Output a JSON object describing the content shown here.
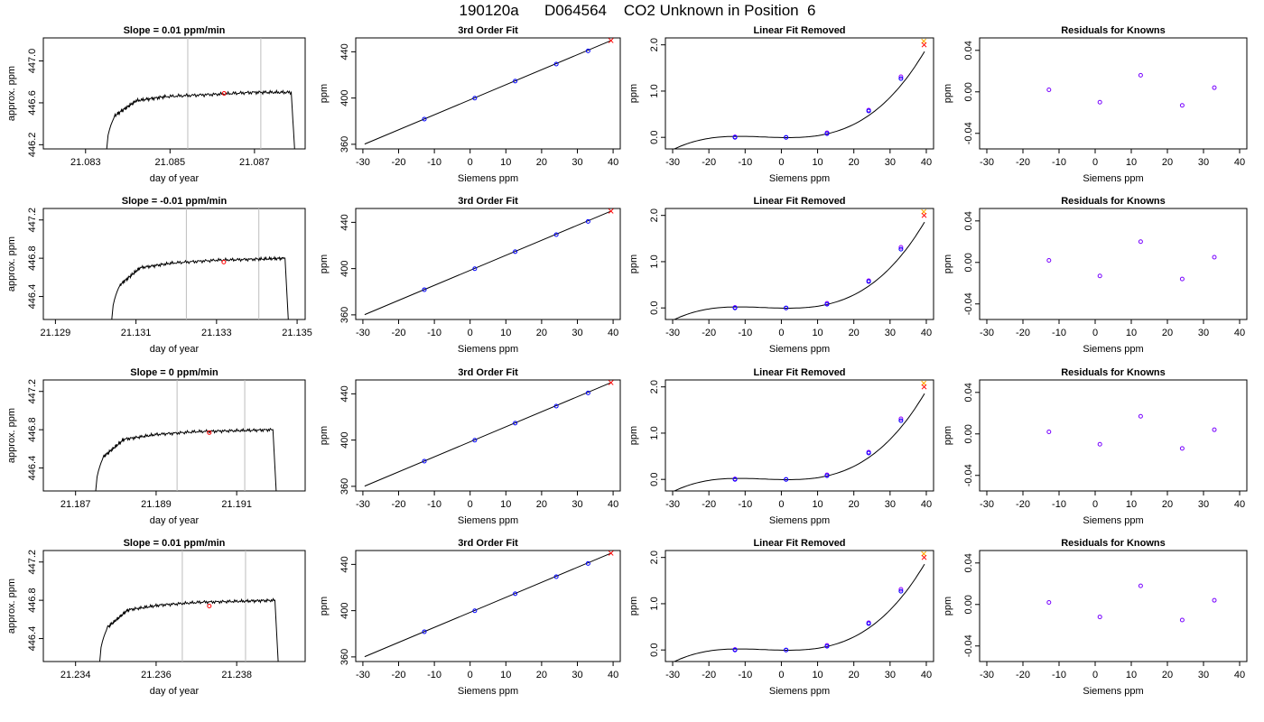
{
  "header": {
    "title": "190120a      D064564    CO2 Unknown in Position  6"
  },
  "chart_data": [
    {
      "type": "line",
      "title": "Slope =  0.01  ppm/min",
      "xlabel": "day of year",
      "ylabel": "approx. ppm",
      "xlim": [
        21.082,
        21.0882
      ],
      "ylim": [
        446.16,
        447.22
      ],
      "xticks": [
        21.083,
        21.085,
        21.087
      ],
      "yticks": [
        446.2,
        446.6,
        447.0
      ],
      "vlines": [
        21.08542,
        21.08715
      ],
      "series": [
        {
          "x": [
            21.0835,
            21.0837,
            21.0842,
            21.0849,
            21.086,
            21.087,
            21.08787,
            21.08795
          ],
          "y": [
            446.16,
            446.48,
            446.62,
            446.66,
            446.68,
            446.7,
            446.7,
            446.16
          ],
          "color": "#000000"
        }
      ],
      "markers": [
        {
          "x": 21.08628,
          "y": 446.69,
          "color": "#ff0000"
        }
      ]
    },
    {
      "type": "scatter",
      "title": "3rd Order Fit",
      "xlabel": "Siemens ppm",
      "ylabel": "ppm",
      "xlim": [
        -32,
        42
      ],
      "ylim": [
        356,
        452
      ],
      "xticks": [
        -30,
        -20,
        -10,
        0,
        10,
        20,
        30,
        40
      ],
      "yticks": [
        360,
        400,
        440
      ],
      "fit_line": {
        "x": [
          -29.5,
          39.5
        ],
        "y": [
          360.2,
          449.8
        ]
      },
      "knowns": {
        "x": [
          -12.8,
          1.3,
          12.6,
          24.1,
          33.0
        ],
        "y": [
          381.8,
          399.9,
          414.6,
          429.4,
          440.8
        ],
        "color": "#0000ff"
      },
      "unknown": {
        "x": 39.4,
        "y": 449.7,
        "color": "#ff0000"
      }
    },
    {
      "type": "scatter",
      "title": "Linear Fit Removed",
      "xlabel": "Siemens ppm",
      "ylabel": "ppm",
      "xlim": [
        -32,
        42
      ],
      "ylim": [
        -0.25,
        2.15
      ],
      "xticks": [
        -30,
        -20,
        -10,
        0,
        10,
        20,
        30,
        40
      ],
      "yticks": [
        0.0,
        1.0,
        2.0
      ],
      "curve_coeffs": [
        -0.00434,
        -0.00143,
        0.000335,
        2.26e-05
      ],
      "curve_xrange": [
        -29.5,
        39.5
      ],
      "knowns": {
        "x": [
          -12.8,
          1.3,
          12.6,
          24.1,
          33.0
        ],
        "y": [
          0.0,
          0.0,
          0.08,
          0.57,
          1.27
        ],
        "color": "#0000ff"
      },
      "knowns_alt": {
        "x": [
          -12.8,
          1.3,
          12.6,
          24.1,
          33.0
        ],
        "y": [
          0.01,
          0.0,
          0.1,
          0.59,
          1.31
        ],
        "color": "#9900ff"
      },
      "unknown": {
        "x": 39.4,
        "y": 2.0,
        "color": "#ff0000"
      },
      "unknown_alt": {
        "x": 39.3,
        "y": 2.08,
        "color": "#ffaa00"
      }
    },
    {
      "type": "scatter",
      "title": "Residuals for Knowns",
      "xlabel": "Siemens ppm",
      "ylabel": "ppm",
      "xlim": [
        -32,
        42
      ],
      "ylim": [
        -0.055,
        0.052
      ],
      "xticks": [
        -30,
        -20,
        -10,
        0,
        10,
        20,
        30,
        40
      ],
      "yticks": [
        -0.04,
        0.0,
        0.04
      ],
      "knowns": {
        "x": [
          -12.8,
          1.3,
          12.6,
          24.1,
          33.0
        ],
        "y": [
          0.002,
          -0.01,
          0.016,
          -0.013,
          0.004
        ],
        "color": "#7700ff"
      }
    },
    {
      "type": "line",
      "title": "Slope =  -0.01  ppm/min",
      "xlabel": "day of year",
      "ylabel": "approx. ppm",
      "xlim": [
        21.1287,
        21.1352
      ],
      "ylim": [
        446.16,
        447.32
      ],
      "xticks": [
        21.129,
        21.131,
        21.133,
        21.135
      ],
      "yticks": [
        446.4,
        446.8,
        447.2
      ],
      "vlines": [
        21.13225,
        21.13405
      ],
      "series": [
        {
          "x": [
            21.1304,
            21.1306,
            21.1311,
            21.1319,
            21.133,
            21.134,
            21.1347,
            21.13478
          ],
          "y": [
            446.16,
            446.52,
            446.7,
            446.75,
            446.78,
            446.79,
            446.8,
            446.16
          ],
          "color": "#000000"
        }
      ],
      "markers": [
        {
          "x": 21.13318,
          "y": 446.76,
          "color": "#ff0000"
        }
      ]
    },
    {
      "type": "scatter",
      "title": "3rd Order Fit",
      "xlabel": "Siemens ppm",
      "ylabel": "ppm",
      "xlim": [
        -32,
        42
      ],
      "ylim": [
        356,
        452
      ],
      "xticks": [
        -30,
        -20,
        -10,
        0,
        10,
        20,
        30,
        40
      ],
      "yticks": [
        360,
        400,
        440
      ],
      "fit_line": {
        "x": [
          -29.5,
          39.5
        ],
        "y": [
          360.2,
          449.8
        ]
      },
      "knowns": {
        "x": [
          -12.8,
          1.3,
          12.6,
          24.1,
          33.0
        ],
        "y": [
          381.8,
          399.9,
          414.6,
          429.4,
          440.8
        ],
        "color": "#0000ff"
      },
      "unknown": {
        "x": 39.4,
        "y": 449.7,
        "color": "#ff0000"
      }
    },
    {
      "type": "scatter",
      "title": "Linear Fit Removed",
      "xlabel": "Siemens ppm",
      "ylabel": "ppm",
      "xlim": [
        -32,
        42
      ],
      "ylim": [
        -0.25,
        2.15
      ],
      "xticks": [
        -30,
        -20,
        -10,
        0,
        10,
        20,
        30,
        40
      ],
      "yticks": [
        0.0,
        1.0,
        2.0
      ],
      "curve_coeffs": [
        -0.00434,
        -0.00143,
        0.000335,
        2.26e-05
      ],
      "curve_xrange": [
        -29.5,
        39.5
      ],
      "knowns": {
        "x": [
          -12.8,
          1.3,
          12.6,
          24.1,
          33.0
        ],
        "y": [
          0.0,
          0.0,
          0.08,
          0.57,
          1.27
        ],
        "color": "#0000ff"
      },
      "knowns_alt": {
        "x": [
          -12.8,
          1.3,
          12.6,
          24.1,
          33.0
        ],
        "y": [
          0.01,
          0.0,
          0.1,
          0.59,
          1.31
        ],
        "color": "#9900ff"
      },
      "unknown": {
        "x": 39.4,
        "y": 2.0,
        "color": "#ff0000"
      },
      "unknown_alt": {
        "x": 39.3,
        "y": 2.08,
        "color": "#ffaa00"
      }
    },
    {
      "type": "scatter",
      "title": "Residuals for Knowns",
      "xlabel": "Siemens ppm",
      "ylabel": "ppm",
      "xlim": [
        -32,
        42
      ],
      "ylim": [
        -0.055,
        0.052
      ],
      "xticks": [
        -30,
        -20,
        -10,
        0,
        10,
        20,
        30,
        40
      ],
      "yticks": [
        -0.04,
        0.0,
        0.04
      ],
      "knowns": {
        "x": [
          -12.8,
          1.3,
          12.6,
          24.1,
          33.0
        ],
        "y": [
          0.002,
          -0.013,
          0.02,
          -0.016,
          0.005
        ],
        "color": "#7700ff"
      }
    },
    {
      "type": "line",
      "title": "Slope =  0  ppm/min",
      "xlabel": "day of year",
      "ylabel": "approx. ppm",
      "xlim": [
        21.1862,
        21.1927
      ],
      "ylim": [
        446.16,
        447.32
      ],
      "xticks": [
        21.187,
        21.189,
        21.191
      ],
      "yticks": [
        446.4,
        446.8,
        447.2
      ],
      "vlines": [
        21.18952,
        21.1912
      ],
      "series": [
        {
          "x": [
            21.1875,
            21.1877,
            21.1882,
            21.189,
            21.19,
            21.191,
            21.1919,
            21.19198
          ],
          "y": [
            446.16,
            446.52,
            446.7,
            446.75,
            446.78,
            446.79,
            446.8,
            446.16
          ],
          "color": "#000000"
        }
      ],
      "markers": [
        {
          "x": 21.19032,
          "y": 446.77,
          "color": "#ff0000"
        }
      ]
    },
    {
      "type": "scatter",
      "title": "3rd Order Fit",
      "xlabel": "Siemens ppm",
      "ylabel": "ppm",
      "xlim": [
        -32,
        42
      ],
      "ylim": [
        356,
        452
      ],
      "xticks": [
        -30,
        -20,
        -10,
        0,
        10,
        20,
        30,
        40
      ],
      "yticks": [
        360,
        400,
        440
      ],
      "fit_line": {
        "x": [
          -29.5,
          39.5
        ],
        "y": [
          360.2,
          449.8
        ]
      },
      "knowns": {
        "x": [
          -12.8,
          1.3,
          12.6,
          24.1,
          33.0
        ],
        "y": [
          381.8,
          399.9,
          414.6,
          429.4,
          440.8
        ],
        "color": "#0000ff"
      },
      "unknown": {
        "x": 39.4,
        "y": 449.7,
        "color": "#ff0000"
      }
    },
    {
      "type": "scatter",
      "title": "Linear Fit Removed",
      "xlabel": "Siemens ppm",
      "ylabel": "ppm",
      "xlim": [
        -32,
        42
      ],
      "ylim": [
        -0.25,
        2.15
      ],
      "xticks": [
        -30,
        -20,
        -10,
        0,
        10,
        20,
        30,
        40
      ],
      "yticks": [
        0.0,
        1.0,
        2.0
      ],
      "curve_coeffs": [
        -0.00434,
        -0.00143,
        0.000335,
        2.26e-05
      ],
      "curve_xrange": [
        -29.5,
        39.5
      ],
      "knowns": {
        "x": [
          -12.8,
          1.3,
          12.6,
          24.1,
          33.0
        ],
        "y": [
          0.0,
          0.0,
          0.08,
          0.57,
          1.27
        ],
        "color": "#0000ff"
      },
      "knowns_alt": {
        "x": [
          -12.8,
          1.3,
          12.6,
          24.1,
          33.0
        ],
        "y": [
          0.01,
          0.0,
          0.1,
          0.59,
          1.31
        ],
        "color": "#9900ff"
      },
      "unknown": {
        "x": 39.4,
        "y": 2.0,
        "color": "#ff0000"
      },
      "unknown_alt": {
        "x": 39.3,
        "y": 2.08,
        "color": "#ffaa00"
      }
    },
    {
      "type": "scatter",
      "title": "Residuals for Knowns",
      "xlabel": "Siemens ppm",
      "ylabel": "ppm",
      "xlim": [
        -32,
        42
      ],
      "ylim": [
        -0.055,
        0.052
      ],
      "xticks": [
        -30,
        -20,
        -10,
        0,
        10,
        20,
        30,
        40
      ],
      "yticks": [
        -0.04,
        0.0,
        0.04
      ],
      "knowns": {
        "x": [
          -12.8,
          1.3,
          12.6,
          24.1,
          33.0
        ],
        "y": [
          0.002,
          -0.01,
          0.017,
          -0.014,
          0.004
        ],
        "color": "#7700ff"
      }
    },
    {
      "type": "line",
      "title": "Slope =  0.01  ppm/min",
      "xlabel": "day of year",
      "ylabel": "approx. ppm",
      "xlim": [
        21.2332,
        21.2397
      ],
      "ylim": [
        446.16,
        447.32
      ],
      "xticks": [
        21.234,
        21.236,
        21.238
      ],
      "yticks": [
        446.4,
        446.8,
        447.2
      ],
      "vlines": [
        21.23665,
        21.23822
      ],
      "series": [
        {
          "x": [
            21.2346,
            21.2348,
            21.2353,
            21.2361,
            21.2371,
            21.2381,
            21.23895,
            21.23903
          ],
          "y": [
            446.16,
            446.52,
            446.7,
            446.75,
            446.78,
            446.79,
            446.8,
            446.16
          ],
          "color": "#000000"
        }
      ],
      "markers": [
        {
          "x": 21.23732,
          "y": 446.74,
          "color": "#ff0000"
        }
      ]
    },
    {
      "type": "scatter",
      "title": "3rd Order Fit",
      "xlabel": "Siemens ppm",
      "ylabel": "ppm",
      "xlim": [
        -32,
        42
      ],
      "ylim": [
        356,
        452
      ],
      "xticks": [
        -30,
        -20,
        -10,
        0,
        10,
        20,
        30,
        40
      ],
      "yticks": [
        360,
        400,
        440
      ],
      "fit_line": {
        "x": [
          -29.5,
          39.5
        ],
        "y": [
          360.2,
          449.8
        ]
      },
      "knowns": {
        "x": [
          -12.8,
          1.3,
          12.6,
          24.1,
          33.0
        ],
        "y": [
          381.8,
          399.9,
          414.6,
          429.4,
          440.8
        ],
        "color": "#0000ff"
      },
      "unknown": {
        "x": 39.4,
        "y": 449.7,
        "color": "#ff0000"
      }
    },
    {
      "type": "scatter",
      "title": "Linear Fit Removed",
      "xlabel": "Siemens ppm",
      "ylabel": "ppm",
      "xlim": [
        -32,
        42
      ],
      "ylim": [
        -0.25,
        2.15
      ],
      "xticks": [
        -30,
        -20,
        -10,
        0,
        10,
        20,
        30,
        40
      ],
      "yticks": [
        0.0,
        1.0,
        2.0
      ],
      "curve_coeffs": [
        -0.00434,
        -0.00143,
        0.000335,
        2.26e-05
      ],
      "curve_xrange": [
        -29.5,
        39.5
      ],
      "knowns": {
        "x": [
          -12.8,
          1.3,
          12.6,
          24.1,
          33.0
        ],
        "y": [
          0.0,
          0.0,
          0.08,
          0.57,
          1.27
        ],
        "color": "#0000ff"
      },
      "knowns_alt": {
        "x": [
          -12.8,
          1.3,
          12.6,
          24.1,
          33.0
        ],
        "y": [
          0.01,
          0.0,
          0.1,
          0.59,
          1.31
        ],
        "color": "#9900ff"
      },
      "unknown": {
        "x": 39.4,
        "y": 2.0,
        "color": "#ff0000"
      },
      "unknown_alt": {
        "x": 39.3,
        "y": 2.08,
        "color": "#ffaa00"
      }
    },
    {
      "type": "scatter",
      "title": "Residuals for Knowns",
      "xlabel": "Siemens ppm",
      "ylabel": "ppm",
      "xlim": [
        -32,
        42
      ],
      "ylim": [
        -0.055,
        0.052
      ],
      "xticks": [
        -30,
        -20,
        -10,
        0,
        10,
        20,
        30,
        40
      ],
      "yticks": [
        -0.04,
        0.0,
        0.04
      ],
      "knowns": {
        "x": [
          -12.8,
          1.3,
          12.6,
          24.1,
          33.0
        ],
        "y": [
          0.002,
          -0.012,
          0.018,
          -0.015,
          0.004
        ],
        "color": "#7700ff"
      }
    }
  ]
}
